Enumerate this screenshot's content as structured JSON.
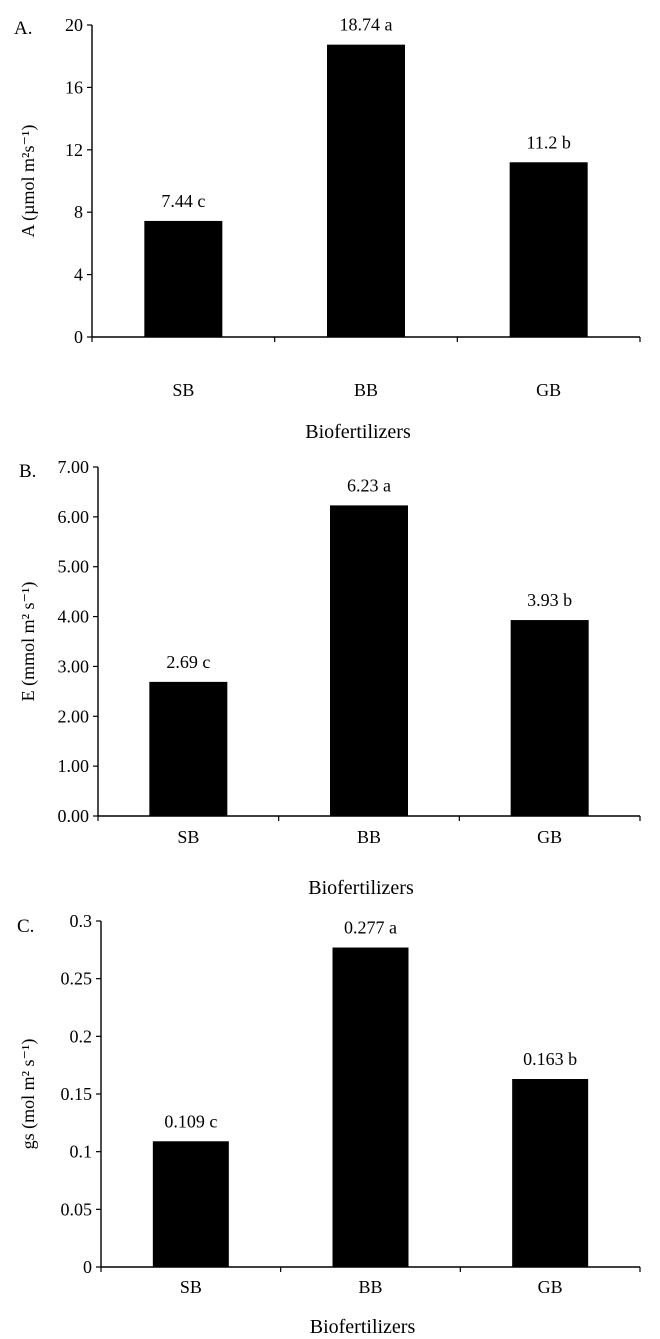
{
  "chart_data": [
    {
      "type": "bar",
      "panel_label": "A.",
      "categories": [
        "SB",
        "BB",
        "GB"
      ],
      "values": [
        7.44,
        18.74,
        11.2
      ],
      "data_labels": [
        "7.44 c",
        "18.74 a",
        "11.2 b"
      ],
      "ticks": [
        0,
        4,
        8,
        12,
        16,
        20
      ],
      "tick_labels": [
        "0",
        "4",
        "8",
        "12",
        "16",
        "20"
      ],
      "ylim": [
        0,
        20
      ],
      "ylabel": "A (µmol m²s⁻¹)",
      "xlabel": "Biofertilizers",
      "bar_color": "#000000",
      "grid": false,
      "legend": "none"
    },
    {
      "type": "bar",
      "panel_label": "B.",
      "categories": [
        "SB",
        "BB",
        "GB"
      ],
      "values": [
        2.69,
        6.23,
        3.93
      ],
      "data_labels": [
        "2.69 c",
        "6.23 a",
        "3.93 b"
      ],
      "ticks": [
        0,
        1,
        2,
        3,
        4,
        5,
        6,
        7
      ],
      "tick_labels": [
        "0.00",
        "1.00",
        "2.00",
        "3.00",
        "4.00",
        "5.00",
        "6.00",
        "7.00"
      ],
      "ylim": [
        0,
        7
      ],
      "ylabel": "E (mmol m² s⁻¹)",
      "xlabel": "Biofertilizers",
      "bar_color": "#000000",
      "grid": false,
      "legend": "none"
    },
    {
      "type": "bar",
      "panel_label": "C.",
      "categories": [
        "SB",
        "BB",
        "GB"
      ],
      "values": [
        0.109,
        0.277,
        0.163
      ],
      "data_labels": [
        "0.109 c",
        "0.277 a",
        "0.163 b"
      ],
      "ticks": [
        0,
        0.05,
        0.1,
        0.15,
        0.2,
        0.25,
        0.3
      ],
      "tick_labels": [
        "0",
        "0.05",
        "0.1",
        "0.15",
        "0.2",
        "0.25",
        "0.3"
      ],
      "ylim": [
        0,
        0.3
      ],
      "ylabel": "gs (mol m² s⁻¹)",
      "xlabel": "Biofertilizers",
      "bar_color": "#000000",
      "grid": false,
      "legend": "none"
    }
  ]
}
